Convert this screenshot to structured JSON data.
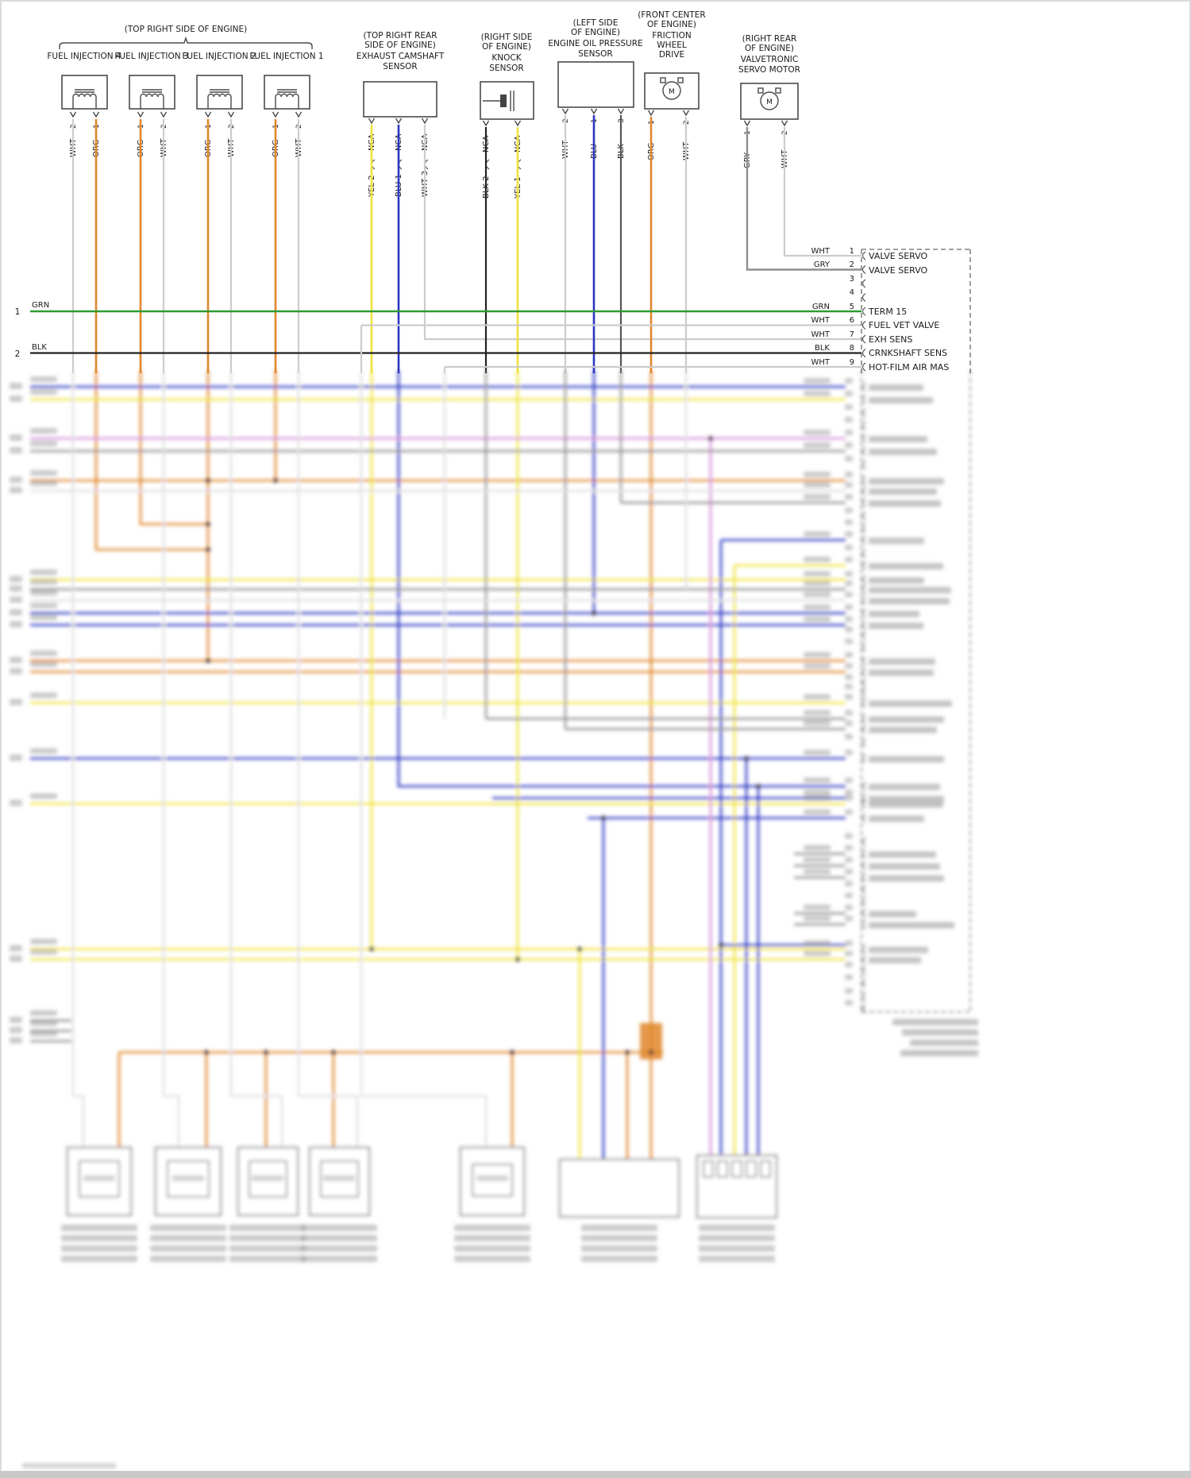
{
  "colors": {
    "orange": "#E0862C",
    "yellow": "#F0E23A",
    "blue": "#2C36C2",
    "green": "#2F9B33",
    "black": "#222222",
    "gray": "#8f8f8f",
    "white_wire": "#cccccc",
    "violet": "#D48FD8"
  },
  "injectors": {
    "area_label": "(TOP RIGHT SIDE OF ENGINE)",
    "items": [
      {
        "label": "FUEL INJECTION 4",
        "pins": [
          "2",
          "1"
        ],
        "wires": [
          "WHT",
          "ORG"
        ]
      },
      {
        "label": "FUEL INJECTION 3",
        "pins": [
          "1",
          "2"
        ],
        "wires": [
          "ORG",
          "WHT"
        ]
      },
      {
        "label": "FUEL INJECTION 2",
        "pins": [
          "1",
          "2"
        ],
        "wires": [
          "ORG",
          "WHT"
        ]
      },
      {
        "label": "FUEL INJECTION 1",
        "pins": [
          "1",
          "2"
        ],
        "wires": [
          "ORG",
          "WHT"
        ]
      }
    ]
  },
  "camshaft_sensor": {
    "location": [
      "(TOP RIGHT REAR",
      "SIDE OF ENGINE)"
    ],
    "name": [
      "EXHAUST CAMSHAFT",
      "SENSOR"
    ],
    "nca": [
      "NCA",
      "NCA",
      "NCA"
    ],
    "wires": [
      "YEL 2",
      "BLU 1",
      "WHT 3"
    ]
  },
  "knock_sensor": {
    "location": [
      "(RIGHT SIDE",
      "OF ENGINE)"
    ],
    "name": [
      "KNOCK",
      "SENSOR"
    ],
    "nca": [
      "NCA",
      "NCA"
    ],
    "wires": [
      "BLK 2",
      "YEL 1"
    ]
  },
  "oil_pressure_sensor": {
    "location": [
      "(LEFT SIDE",
      "OF ENGINE)"
    ],
    "name": [
      "ENGINE OIL PRESSURE",
      "SENSOR"
    ],
    "pins": [
      "2",
      "1",
      "3"
    ],
    "wires": [
      "WHT",
      "BLU",
      "BLK"
    ]
  },
  "friction_wheel_drive": {
    "location": [
      "(FRONT CENTER",
      "OF ENGINE)"
    ],
    "name": [
      "FRICTION",
      "WHEEL",
      "DRIVE"
    ],
    "pins": [
      "1",
      "2"
    ],
    "wires": [
      "ORG",
      "WHT"
    ],
    "motor_letter": "M"
  },
  "valvetronic_motor": {
    "location": [
      "(RIGHT REAR",
      "OF ENGINE)"
    ],
    "name": [
      "VALVETRONIC",
      "SERVO MOTOR"
    ],
    "pins": [
      "1",
      "2"
    ],
    "wires": [
      "GRY",
      "WHT"
    ],
    "motor_letter": "M"
  },
  "left_wires": [
    {
      "num": "1",
      "color": "GRN"
    },
    {
      "num": "2",
      "color": "BLK"
    }
  ],
  "ecm_connector": {
    "rows": [
      {
        "color": "WHT",
        "pin": "1",
        "label": "VALVE SERVO"
      },
      {
        "color": "GRY",
        "pin": "2",
        "label": "VALVE SERVO"
      },
      {
        "color": "",
        "pin": "3",
        "label": ""
      },
      {
        "color": "",
        "pin": "4",
        "label": ""
      },
      {
        "color": "GRN",
        "pin": "5",
        "label": "TERM 15"
      },
      {
        "color": "WHT",
        "pin": "6",
        "label": "FUEL VET VALVE"
      },
      {
        "color": "WHT",
        "pin": "7",
        "label": "EXH SENS"
      },
      {
        "color": "BLK",
        "pin": "8",
        "label": "CRNKSHAFT SENS"
      },
      {
        "color": "WHT",
        "pin": "9",
        "label": "HOT-FILM AIR MAS"
      }
    ]
  }
}
